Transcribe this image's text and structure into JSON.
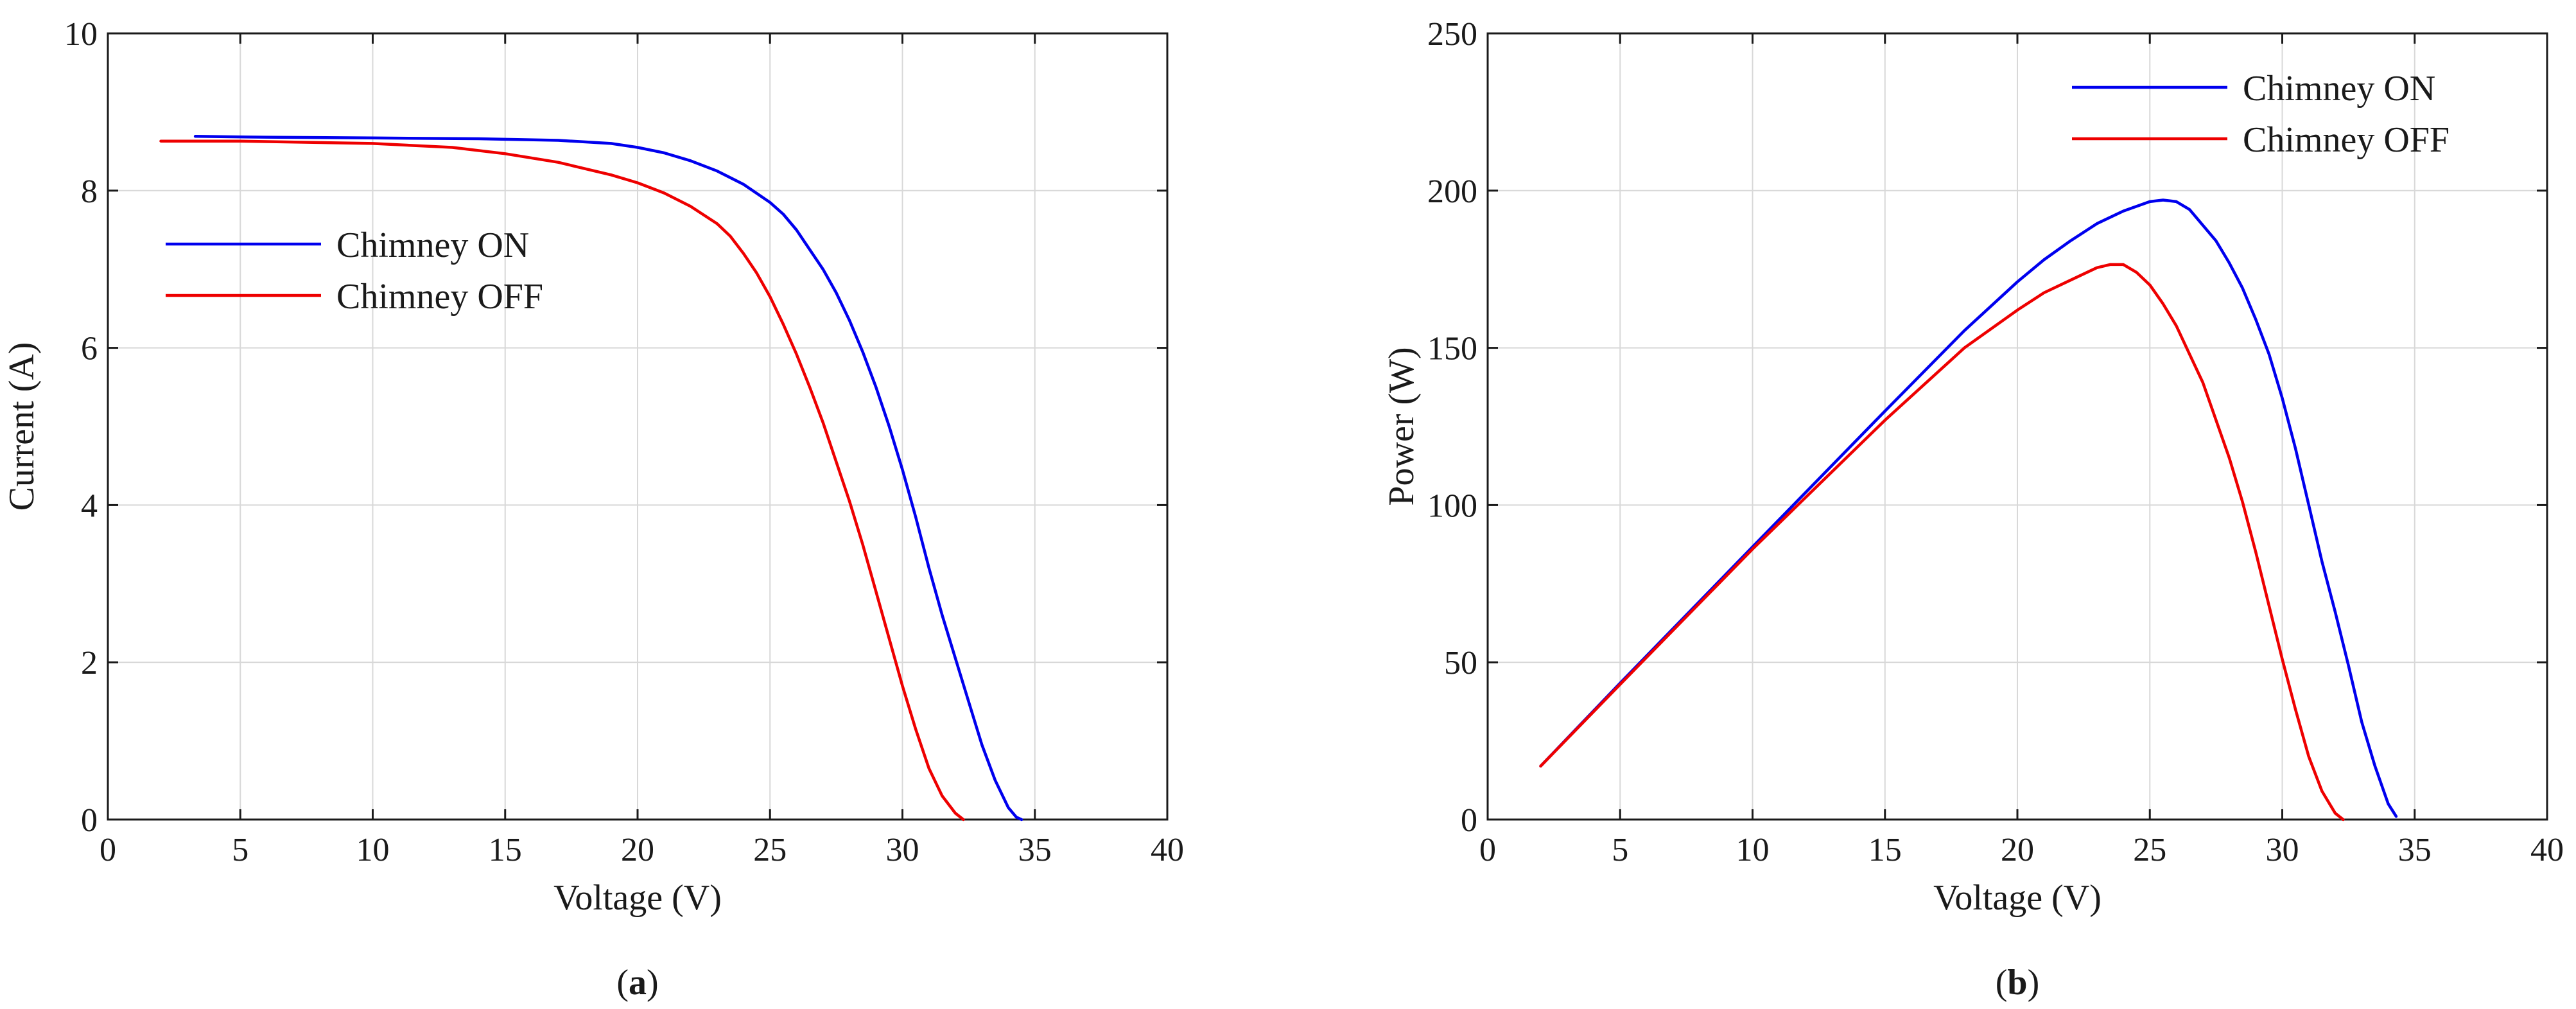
{
  "chart_data": [
    {
      "type": "line",
      "panel": "a",
      "xlabel": "Voltage (V)",
      "ylabel": "Current (A)",
      "xlim": [
        0,
        40
      ],
      "ylim": [
        0,
        10
      ],
      "xticks": [
        0,
        5,
        10,
        15,
        20,
        25,
        30,
        35,
        40
      ],
      "yticks": [
        0,
        2,
        4,
        6,
        8,
        10
      ],
      "grid": true,
      "legend_position": "upper-left",
      "caption": {
        "open": "(",
        "letter": "a",
        "close": ")"
      },
      "series": [
        {
          "name": "Chimney ON",
          "color": "#0000ee",
          "x": [
            3.3,
            6,
            10,
            14,
            17,
            19,
            20,
            21,
            22,
            23,
            24,
            25,
            25.5,
            26,
            26.5,
            27,
            27.5,
            28,
            28.5,
            29,
            29.5,
            30,
            30.5,
            31,
            31.5,
            32,
            32.5,
            33,
            33.5,
            34,
            34.3,
            34.5
          ],
          "y": [
            8.69,
            8.68,
            8.67,
            8.66,
            8.64,
            8.6,
            8.55,
            8.48,
            8.38,
            8.25,
            8.08,
            7.85,
            7.7,
            7.5,
            7.25,
            7.0,
            6.7,
            6.35,
            5.95,
            5.5,
            5.0,
            4.45,
            3.85,
            3.2,
            2.6,
            2.05,
            1.5,
            0.95,
            0.5,
            0.15,
            0.03,
            0.0
          ]
        },
        {
          "name": "Chimney OFF",
          "color": "#ee0000",
          "x": [
            2,
            5,
            10,
            13,
            15,
            17,
            19,
            20,
            21,
            22,
            23,
            23.5,
            24,
            24.5,
            25,
            25.5,
            26,
            26.5,
            27,
            27.5,
            28,
            28.5,
            29,
            29.5,
            30,
            30.5,
            31,
            31.5,
            32,
            32.3
          ],
          "y": [
            8.63,
            8.63,
            8.6,
            8.55,
            8.47,
            8.36,
            8.2,
            8.1,
            7.97,
            7.8,
            7.58,
            7.42,
            7.2,
            6.95,
            6.65,
            6.3,
            5.92,
            5.5,
            5.05,
            4.55,
            4.05,
            3.5,
            2.9,
            2.3,
            1.7,
            1.15,
            0.65,
            0.3,
            0.08,
            0.0
          ]
        }
      ]
    },
    {
      "type": "line",
      "panel": "b",
      "xlabel": "Voltage (V)",
      "ylabel": "Power (W)",
      "xlim": [
        0,
        40
      ],
      "ylim": [
        0,
        250
      ],
      "xticks": [
        0,
        5,
        10,
        15,
        20,
        25,
        30,
        35,
        40
      ],
      "yticks": [
        0,
        50,
        100,
        150,
        200,
        250
      ],
      "grid": true,
      "legend_position": "top-right",
      "caption": {
        "open": "(",
        "letter": "b",
        "close": ")"
      },
      "series": [
        {
          "name": "Chimney ON",
          "color": "#0000ee",
          "x": [
            2,
            5,
            10,
            15,
            18,
            20,
            21,
            22,
            23,
            24,
            25,
            25.5,
            26,
            26.5,
            27,
            27.5,
            28,
            28.5,
            29,
            29.5,
            30,
            30.5,
            31,
            31.5,
            32,
            32.5,
            33,
            33.5,
            34,
            34.3
          ],
          "y": [
            17,
            43.4,
            86.7,
            129.9,
            155.5,
            171,
            178,
            184,
            189.5,
            193.5,
            196.5,
            197,
            196.5,
            194,
            189,
            184,
            177,
            169,
            159,
            148,
            134,
            118,
            100,
            82,
            66,
            49,
            31,
            17,
            5,
            1
          ]
        },
        {
          "name": "Chimney OFF",
          "color": "#ee0000",
          "x": [
            2,
            5,
            10,
            15,
            18,
            20,
            21,
            22,
            23,
            23.5,
            24,
            24.5,
            25,
            25.5,
            26,
            26.5,
            27,
            27.5,
            28,
            28.5,
            29,
            29.5,
            30,
            30.5,
            31,
            31.5,
            32,
            32.3
          ],
          "y": [
            17,
            43,
            86,
            127,
            150,
            162,
            167.5,
            171.5,
            175.5,
            176.5,
            176.5,
            174,
            170,
            164,
            157,
            148,
            139,
            127,
            115,
            101,
            85,
            68,
            51,
            35,
            20,
            9,
            2,
            0
          ]
        }
      ]
    }
  ]
}
